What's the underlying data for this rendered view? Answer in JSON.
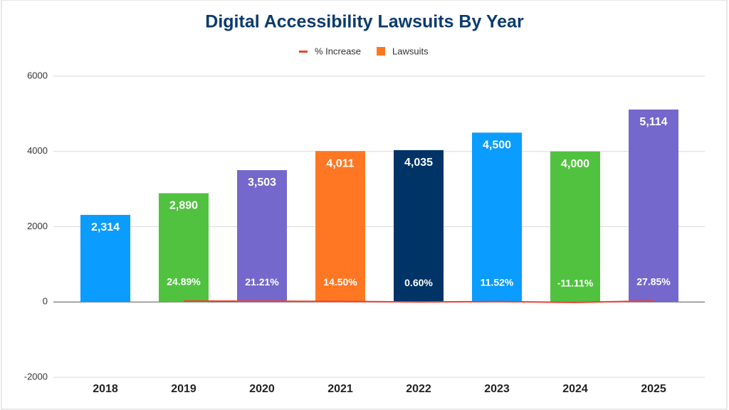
{
  "chart_data": {
    "type": "bar-line",
    "title": "Digital Accessibility Lawsuits By Year",
    "categories": [
      "2018",
      "2019",
      "2020",
      "2021",
      "2022",
      "2023",
      "2024",
      "2025"
    ],
    "series": [
      {
        "name": "% Increase",
        "type": "line",
        "color": "#ea4335",
        "values": [
          null,
          24.89,
          21.21,
          14.5,
          0.6,
          11.52,
          -11.11,
          27.85
        ],
        "value_labels": [
          null,
          "24.89%",
          "21.21%",
          "14.50%",
          "0.60%",
          "11.52%",
          "-11.11%",
          "27.85%"
        ]
      },
      {
        "name": "Lawsuits",
        "type": "bar",
        "color": "#ff7722",
        "colors": [
          "#0a9cff",
          "#50c23f",
          "#7468cc",
          "#ff7722",
          "#003366",
          "#0a9cff",
          "#50c23f",
          "#7468cc"
        ],
        "values": [
          2314,
          2890,
          3503,
          4011,
          4035,
          4500,
          4000,
          5114
        ],
        "value_labels": [
          "2,314",
          "2,890",
          "3,503",
          "4,011",
          "4,035",
          "4,500",
          "4,000",
          "5,114"
        ]
      }
    ],
    "ylim": [
      -2000,
      6000
    ],
    "yticks": [
      -2000,
      0,
      2000,
      4000,
      6000
    ],
    "grid": true,
    "legend": "top"
  }
}
